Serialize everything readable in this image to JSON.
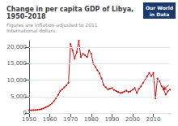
{
  "chart_data": {
    "type": "line",
    "title": "Change in per capita GDP of Libya, 1950–2018",
    "subtitle": "Figures are inflation-adjusted to 2011 International dollars.",
    "x": [
      1950,
      1951,
      1952,
      1953,
      1954,
      1955,
      1956,
      1957,
      1958,
      1959,
      1960,
      1961,
      1962,
      1963,
      1964,
      1965,
      1966,
      1967,
      1968,
      1969,
      1970,
      1971,
      1972,
      1973,
      1974,
      1975,
      1976,
      1977,
      1978,
      1979,
      1980,
      1981,
      1982,
      1983,
      1984,
      1985,
      1986,
      1987,
      1988,
      1989,
      1990,
      1991,
      1992,
      1993,
      1994,
      1995,
      1996,
      1997,
      1998,
      1999,
      2000,
      2001,
      2002,
      2003,
      2004,
      2005,
      2006,
      2007,
      2008,
      2009,
      2010,
      2011,
      2012,
      2013,
      2014,
      2015,
      2016,
      2017,
      2018
    ],
    "values": [
      820,
      850,
      880,
      910,
      950,
      1050,
      1200,
      1400,
      1700,
      2000,
      2400,
      2900,
      3600,
      4500,
      5500,
      6700,
      7200,
      7800,
      8400,
      9200,
      21000,
      19000,
      16500,
      18500,
      22000,
      17000,
      18000,
      17500,
      17000,
      19000,
      18000,
      15000,
      14000,
      13000,
      12000,
      10500,
      8500,
      7800,
      7200,
      7400,
      7600,
      7000,
      6700,
      6400,
      6100,
      6200,
      6500,
      6800,
      6400,
      6600,
      7100,
      7600,
      6100,
      7300,
      8100,
      9100,
      10100,
      11100,
      12200,
      11200,
      12200,
      4500,
      10500,
      9700,
      8100,
      7100,
      5600,
      6600,
      7100
    ],
    "color": "#cc1111",
    "marker": "circle",
    "xlim": [
      1950,
      2018
    ],
    "xticks": [
      1950,
      1960,
      1970,
      1980,
      1990,
      2000,
      2010
    ],
    "ylim": [
      0,
      22000
    ],
    "yticks": [
      0,
      {
        "value": 5000,
        "label": "5,000"
      },
      {
        "value": 10000,
        "label": "10,000"
      },
      {
        "value": 15000,
        "label": "15,000"
      },
      {
        "value": 20000,
        "label": "20,000"
      }
    ],
    "grid": true,
    "annotations": [
      {
        "text": "Our World"
      },
      {
        "text": "in Data"
      },
      {
        "x": 2014.5,
        "y": 7000,
        "x_from": 2017.5,
        "y_from": 8500
      }
    ]
  }
}
